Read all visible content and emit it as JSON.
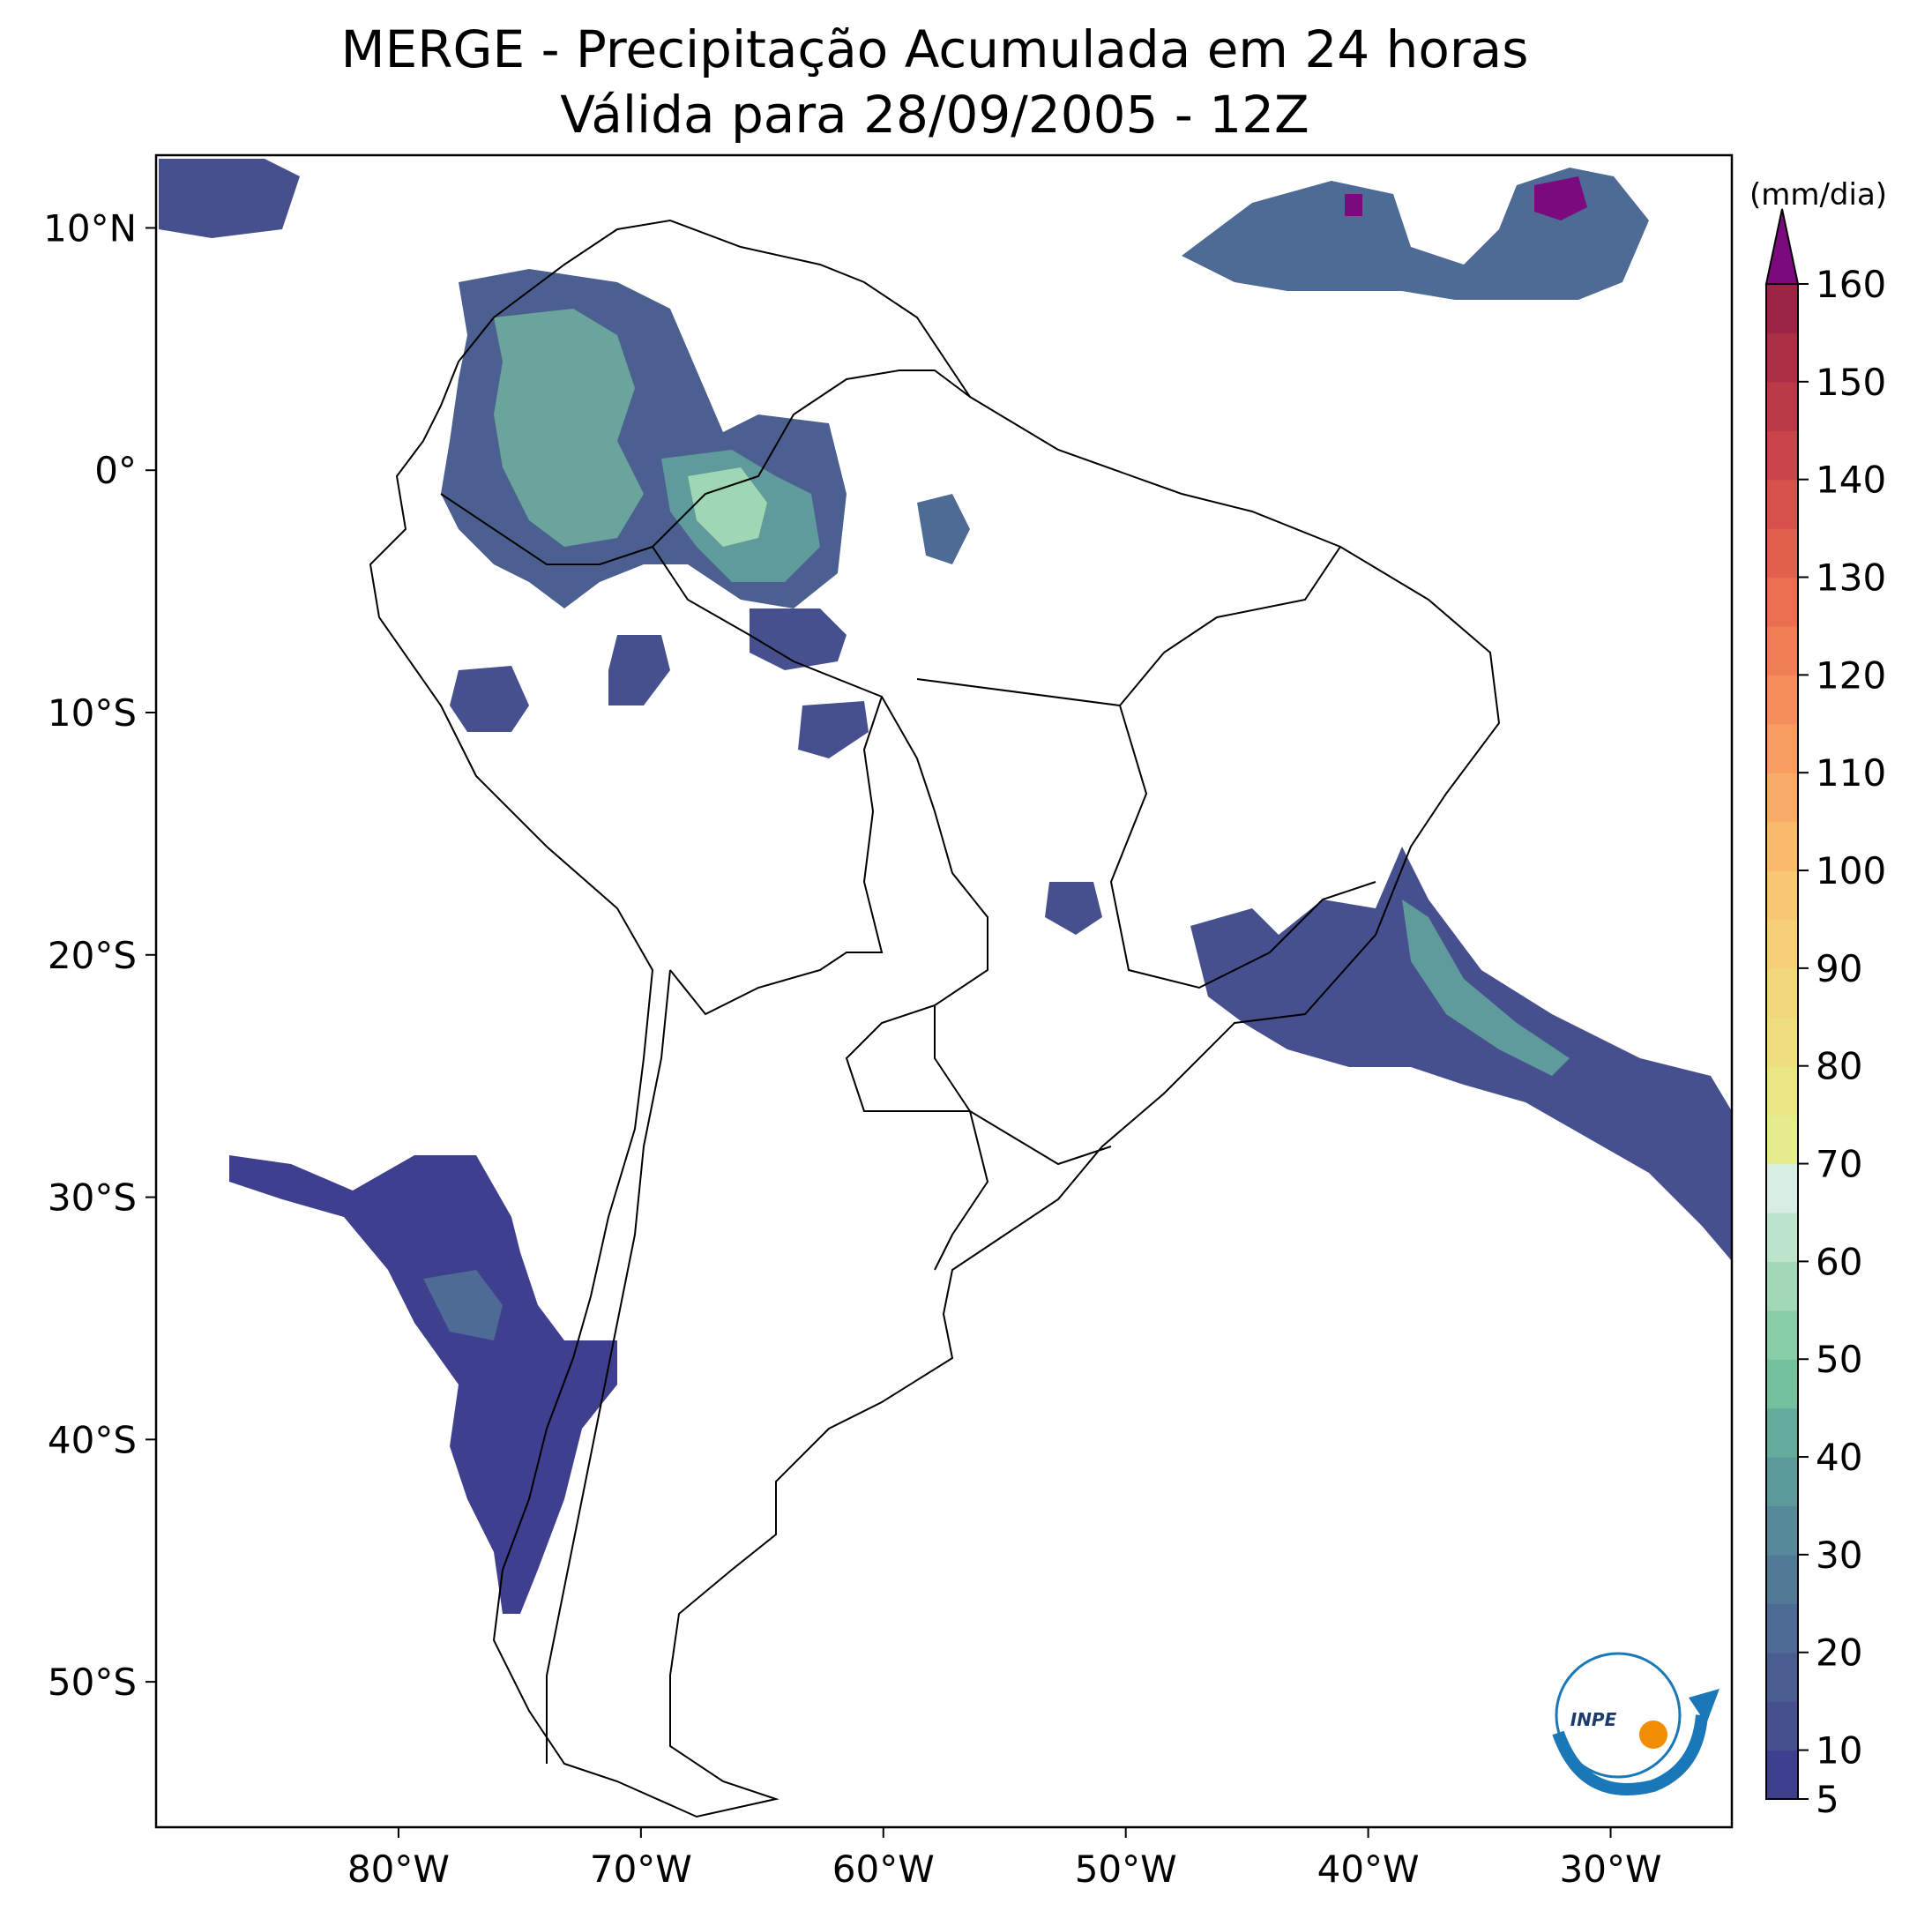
{
  "title_line1": "MERGE - Precipitação Acumulada em 24 horas",
  "title_line2": "Válida para 28/09/2005 - 12Z",
  "chart_data": {
    "type": "map",
    "variable": "precipitation accumulated 24h",
    "units": "(mm/dia)",
    "lon_range": [
      -90,
      -25
    ],
    "lat_range": [
      -56,
      13
    ],
    "x_ticks": [
      {
        "lon": -80,
        "label": "80°W"
      },
      {
        "lon": -70,
        "label": "70°W"
      },
      {
        "lon": -60,
        "label": "60°W"
      },
      {
        "lon": -50,
        "label": "50°W"
      },
      {
        "lon": -40,
        "label": "40°W"
      },
      {
        "lon": -30,
        "label": "30°W"
      }
    ],
    "y_ticks": [
      {
        "lat": 10,
        "label": "10°N"
      },
      {
        "lat": 0,
        "label": "0°"
      },
      {
        "lat": -10,
        "label": "10°S"
      },
      {
        "lat": -20,
        "label": "20°S"
      },
      {
        "lat": -30,
        "label": "30°S"
      },
      {
        "lat": -40,
        "label": "40°S"
      },
      {
        "lat": -50,
        "label": "50°S"
      }
    ],
    "colorbar": {
      "levels": [
        5,
        10,
        15,
        20,
        25,
        30,
        35,
        40,
        45,
        50,
        55,
        60,
        65,
        70,
        75,
        80,
        85,
        90,
        95,
        100,
        105,
        110,
        115,
        120,
        125,
        130,
        135,
        140,
        145,
        150,
        155,
        160
      ],
      "colors": [
        "#3f3f8f",
        "#46508f",
        "#4a5d91",
        "#4d6b94",
        "#527a97",
        "#578a99",
        "#5c999a",
        "#63ab9a",
        "#73c09d",
        "#88cda8",
        "#a2d8b8",
        "#bde4cc",
        "#d8eee3",
        "#e4ec8c",
        "#eae585",
        "#efde80",
        "#f3d77c",
        "#f6cf78",
        "#f9c673",
        "#f9ba6e",
        "#f8ac68",
        "#f79d61",
        "#f48f5b",
        "#f07f55",
        "#ea6e50",
        "#e15f4d",
        "#d6524b",
        "#ca4549",
        "#bb3a48",
        "#ab2f47",
        "#9b2447"
      ],
      "extend_color": "#7a0a7e",
      "tick_labels": [
        "5",
        "10",
        "20",
        "30",
        "40",
        "50",
        "60",
        "70",
        "80",
        "90",
        "100",
        "110",
        "120",
        "130",
        "140",
        "150",
        "160"
      ]
    }
  },
  "logo": {
    "text": "INPE"
  }
}
